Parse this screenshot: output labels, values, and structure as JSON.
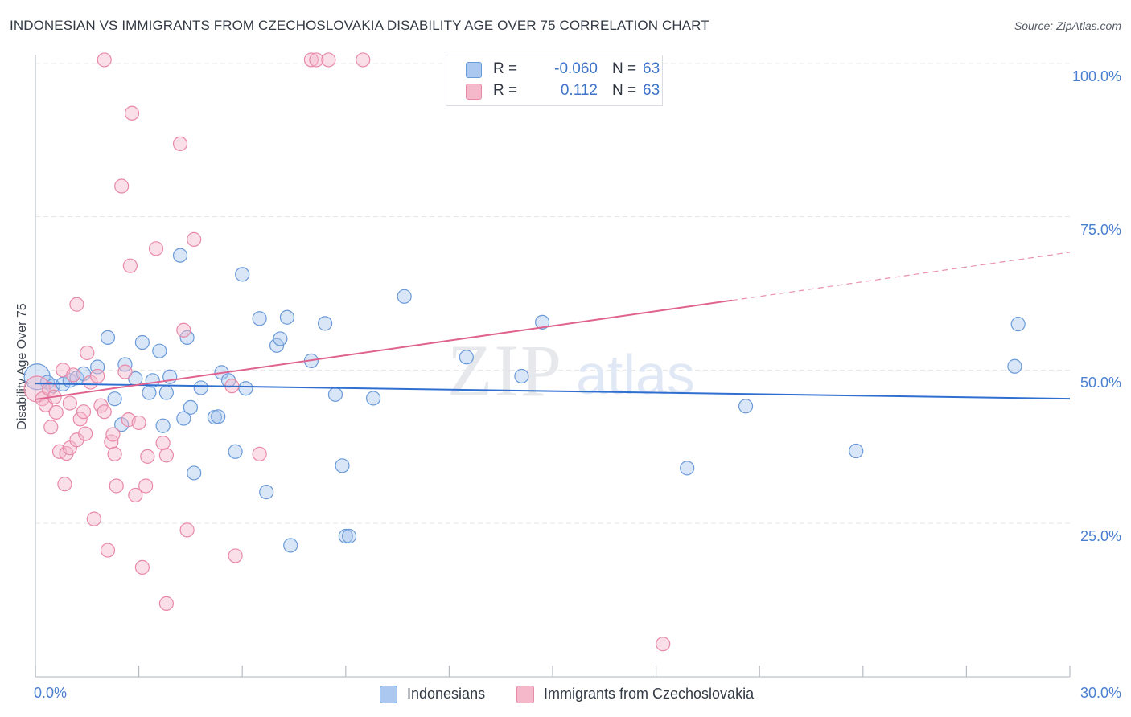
{
  "title": "INDONESIAN VS IMMIGRANTS FROM CZECHOSLOVAKIA DISABILITY AGE OVER 75 CORRELATION CHART",
  "source": "Source: ZipAtlas.com",
  "watermark": {
    "zip": "ZIP",
    "atlas": "atlas"
  },
  "colors": {
    "blue_fill": "#aac8f0",
    "blue_stroke": "#6a9ad8",
    "blue_line": "#2f6fd0",
    "pink_fill": "#f5b8cb",
    "pink_stroke": "#e889a8",
    "pink_line": "#e0628e",
    "grid": "#e2e5ea",
    "axis_text": "#4a7fd0"
  },
  "stats": [
    {
      "r_label": "R =",
      "r_value": "-0.060",
      "n_label": "N =",
      "n_value": "63"
    },
    {
      "r_label": "R =",
      "r_value": "0.112",
      "n_label": "N =",
      "n_value": "63"
    }
  ],
  "legend": [
    {
      "label": "Indonesians"
    },
    {
      "label": "Immigrants from Czechoslovakia"
    }
  ],
  "chart_data": {
    "type": "scatter",
    "title": "INDONESIAN VS IMMIGRANTS FROM CZECHOSLOVAKIA DISABILITY AGE OVER 75 CORRELATION CHART",
    "xlabel": "",
    "ylabel": "Disability Age Over 75",
    "xlim": [
      0,
      30
    ],
    "ylim": [
      2,
      102
    ],
    "x_tick_labels": [
      {
        "value": 0,
        "label": "0.0%"
      },
      {
        "value": 30,
        "label": "30.0%"
      }
    ],
    "y_tick_labels": [
      {
        "value": 100,
        "label": "100.0%"
      },
      {
        "value": 75,
        "label": "75.0%"
      },
      {
        "value": 50,
        "label": "50.0%"
      },
      {
        "value": 25,
        "label": "25.0%"
      }
    ],
    "x_minor_ticks": [
      0,
      3,
      6,
      9,
      12,
      15,
      18,
      21,
      24,
      27,
      30
    ],
    "series": [
      {
        "name": "Indonesians",
        "r": -0.06,
        "n": 63,
        "trend": {
          "x": [
            0,
            30
          ],
          "y": [
            47.8,
            45.3
          ],
          "dashed_from": null
        },
        "points": [
          {
            "x": 0.05,
            "y": 48.9,
            "big": true
          },
          {
            "x": 0.35,
            "y": 48.0
          },
          {
            "x": 0.5,
            "y": 47.4
          },
          {
            "x": 0.8,
            "y": 47.7
          },
          {
            "x": 1.0,
            "y": 48.3
          },
          {
            "x": 1.2,
            "y": 48.7
          },
          {
            "x": 1.4,
            "y": 49.4
          },
          {
            "x": 1.8,
            "y": 50.5
          },
          {
            "x": 2.1,
            "y": 55.3
          },
          {
            "x": 2.3,
            "y": 45.3
          },
          {
            "x": 2.5,
            "y": 41.1
          },
          {
            "x": 2.6,
            "y": 50.9
          },
          {
            "x": 2.9,
            "y": 48.6
          },
          {
            "x": 3.1,
            "y": 54.5
          },
          {
            "x": 3.3,
            "y": 46.3
          },
          {
            "x": 3.4,
            "y": 48.3
          },
          {
            "x": 3.6,
            "y": 53.1
          },
          {
            "x": 3.7,
            "y": 40.9
          },
          {
            "x": 3.8,
            "y": 46.3
          },
          {
            "x": 3.9,
            "y": 48.9
          },
          {
            "x": 4.2,
            "y": 68.7
          },
          {
            "x": 4.3,
            "y": 42.1
          },
          {
            "x": 4.4,
            "y": 55.3
          },
          {
            "x": 4.5,
            "y": 43.9
          },
          {
            "x": 4.6,
            "y": 33.2
          },
          {
            "x": 4.8,
            "y": 47.1
          },
          {
            "x": 5.2,
            "y": 42.3
          },
          {
            "x": 5.3,
            "y": 42.4
          },
          {
            "x": 5.4,
            "y": 49.6
          },
          {
            "x": 5.6,
            "y": 48.3
          },
          {
            "x": 5.8,
            "y": 36.7
          },
          {
            "x": 6.0,
            "y": 65.6
          },
          {
            "x": 6.1,
            "y": 47.0
          },
          {
            "x": 6.5,
            "y": 58.4
          },
          {
            "x": 6.7,
            "y": 30.1
          },
          {
            "x": 7.0,
            "y": 54.0
          },
          {
            "x": 7.1,
            "y": 55.1
          },
          {
            "x": 7.3,
            "y": 58.6
          },
          {
            "x": 7.4,
            "y": 21.4
          },
          {
            "x": 8.0,
            "y": 51.5
          },
          {
            "x": 8.4,
            "y": 57.6
          },
          {
            "x": 8.7,
            "y": 46.0
          },
          {
            "x": 8.9,
            "y": 34.4
          },
          {
            "x": 9.0,
            "y": 22.9
          },
          {
            "x": 9.1,
            "y": 22.9
          },
          {
            "x": 9.8,
            "y": 45.4
          },
          {
            "x": 10.7,
            "y": 62.0
          },
          {
            "x": 12.5,
            "y": 52.1
          },
          {
            "x": 14.1,
            "y": 49.0
          },
          {
            "x": 14.7,
            "y": 57.8
          },
          {
            "x": 18.9,
            "y": 34.0
          },
          {
            "x": 20.6,
            "y": 44.1
          },
          {
            "x": 23.8,
            "y": 36.8
          },
          {
            "x": 28.4,
            "y": 50.6
          },
          {
            "x": 28.5,
            "y": 57.5
          }
        ]
      },
      {
        "name": "Immigrants from Czechoslovakia",
        "r": 0.112,
        "n": 63,
        "trend": {
          "x": [
            0,
            30
          ],
          "y": [
            45.2,
            69.2
          ],
          "dashed_from": 20.2
        },
        "points": [
          {
            "x": 0.05,
            "y": 46.9,
            "big": true
          },
          {
            "x": 0.2,
            "y": 45.3
          },
          {
            "x": 0.3,
            "y": 44.3
          },
          {
            "x": 0.4,
            "y": 46.9
          },
          {
            "x": 0.45,
            "y": 40.7
          },
          {
            "x": 0.55,
            "y": 45.6
          },
          {
            "x": 0.6,
            "y": 43.1
          },
          {
            "x": 0.7,
            "y": 36.7
          },
          {
            "x": 0.8,
            "y": 50.0
          },
          {
            "x": 0.85,
            "y": 31.4
          },
          {
            "x": 0.9,
            "y": 36.4
          },
          {
            "x": 1.0,
            "y": 44.6
          },
          {
            "x": 1.0,
            "y": 37.3
          },
          {
            "x": 1.1,
            "y": 49.2
          },
          {
            "x": 1.2,
            "y": 38.6
          },
          {
            "x": 1.2,
            "y": 60.7
          },
          {
            "x": 1.3,
            "y": 42.0
          },
          {
            "x": 1.4,
            "y": 43.2
          },
          {
            "x": 1.45,
            "y": 39.6
          },
          {
            "x": 1.5,
            "y": 52.8
          },
          {
            "x": 1.6,
            "y": 48.0
          },
          {
            "x": 1.7,
            "y": 25.7
          },
          {
            "x": 1.8,
            "y": 49.0
          },
          {
            "x": 1.9,
            "y": 44.2
          },
          {
            "x": 2.0,
            "y": 43.2
          },
          {
            "x": 2.0,
            "y": 100.6
          },
          {
            "x": 2.1,
            "y": 20.6
          },
          {
            "x": 2.2,
            "y": 38.3
          },
          {
            "x": 2.25,
            "y": 39.5
          },
          {
            "x": 2.3,
            "y": 36.3
          },
          {
            "x": 2.35,
            "y": 31.1
          },
          {
            "x": 2.5,
            "y": 80.0
          },
          {
            "x": 2.6,
            "y": 49.7
          },
          {
            "x": 2.7,
            "y": 41.9
          },
          {
            "x": 2.75,
            "y": 67.0
          },
          {
            "x": 2.8,
            "y": 91.9
          },
          {
            "x": 2.9,
            "y": 29.6
          },
          {
            "x": 3.0,
            "y": 41.4
          },
          {
            "x": 3.1,
            "y": 17.8
          },
          {
            "x": 3.2,
            "y": 31.1
          },
          {
            "x": 3.25,
            "y": 35.9
          },
          {
            "x": 3.5,
            "y": 69.8
          },
          {
            "x": 3.7,
            "y": 38.1
          },
          {
            "x": 3.8,
            "y": 36.1
          },
          {
            "x": 3.8,
            "y": 11.9
          },
          {
            "x": 4.2,
            "y": 86.9
          },
          {
            "x": 4.3,
            "y": 56.5
          },
          {
            "x": 4.4,
            "y": 23.9
          },
          {
            "x": 4.6,
            "y": 71.3
          },
          {
            "x": 5.7,
            "y": 47.4
          },
          {
            "x": 5.8,
            "y": 19.7
          },
          {
            "x": 6.5,
            "y": 36.3
          },
          {
            "x": 8.0,
            "y": 100.6
          },
          {
            "x": 8.15,
            "y": 100.6
          },
          {
            "x": 8.5,
            "y": 100.6
          },
          {
            "x": 9.5,
            "y": 100.6
          },
          {
            "x": 18.2,
            "y": 5.3
          }
        ]
      }
    ]
  }
}
